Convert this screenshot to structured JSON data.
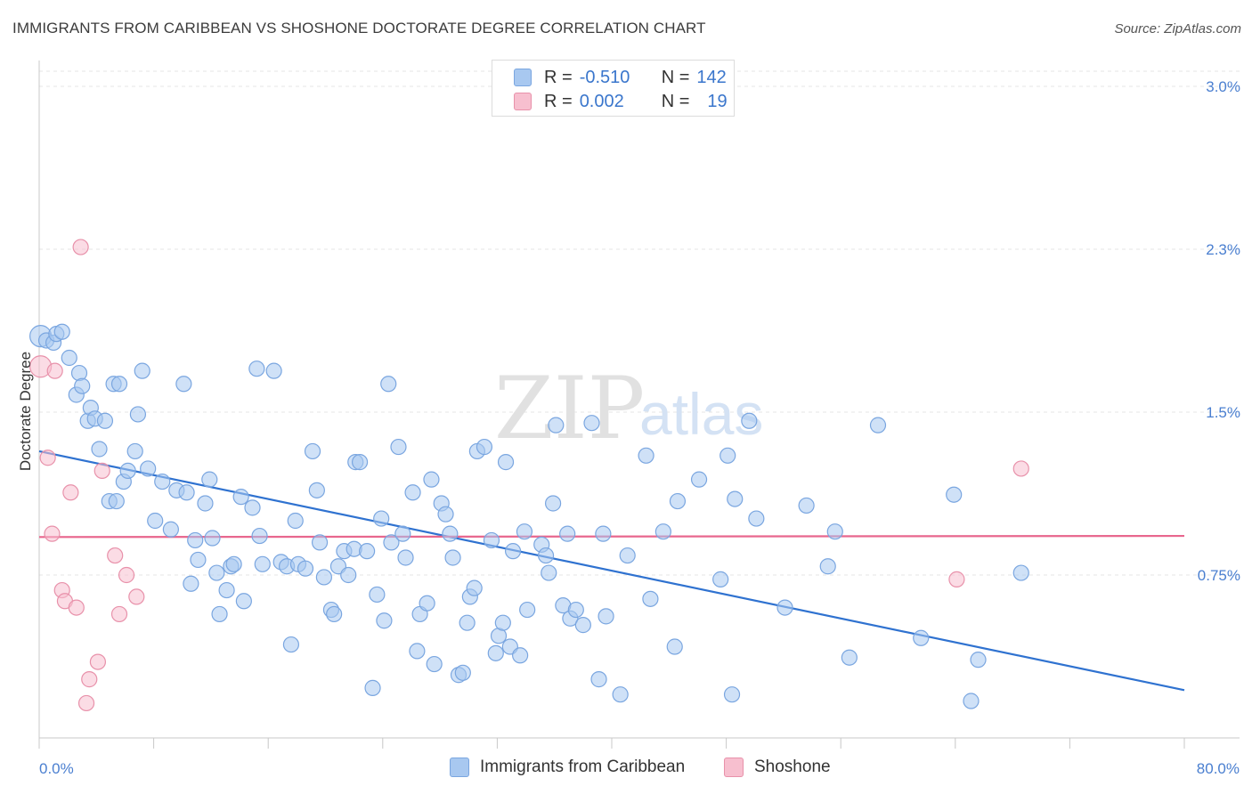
{
  "title": "IMMIGRANTS FROM CARIBBEAN VS SHOSHONE DOCTORATE DEGREE CORRELATION CHART",
  "source": "Source: ZipAtlas.com",
  "watermark": {
    "zip": "ZIP",
    "atlas": "atlas"
  },
  "legend_top": [
    {
      "r_label": "R =",
      "r_value": "-0.510",
      "n_label": "N =",
      "n_value": "142",
      "color": "#a8c8f0",
      "border": "#7aa6e0"
    },
    {
      "r_label": "R =",
      "r_value": "0.002",
      "n_label": "N =",
      "n_value": "19",
      "color": "#f7bfcf",
      "border": "#e891aa"
    }
  ],
  "legend_bottom": [
    {
      "label": "Immigrants from Caribbean",
      "color": "#a8c8f0"
    },
    {
      "label": "Shoshone",
      "color": "#f7bfcf"
    }
  ],
  "chart_data": {
    "type": "scatter",
    "title": "IMMIGRANTS FROM CARIBBEAN VS SHOSHONE DOCTORATE DEGREE CORRELATION CHART",
    "xlabel": "",
    "ylabel": "Doctorate Degree",
    "x_tick_labels": [
      "0.0%",
      "80.0%"
    ],
    "y_tick_labels": [
      "0.75%",
      "1.5%",
      "2.3%",
      "3.0%"
    ],
    "y_ticks": [
      0.75,
      1.5,
      2.25,
      3.0
    ],
    "xlim": [
      0,
      80
    ],
    "ylim": [
      0,
      3.1
    ],
    "grid": true,
    "legend_position": "top-center",
    "series": [
      {
        "name": "Immigrants from Caribbean",
        "color": "#7aa6e0",
        "fill": "#a8c8f0",
        "trend": {
          "x0": 0,
          "y0": 1.32,
          "x1": 80,
          "y1": 0.22,
          "color": "#2f72d0"
        },
        "points": [
          [
            0.1,
            1.85
          ],
          [
            0.5,
            1.83
          ],
          [
            1.0,
            1.82
          ],
          [
            1.2,
            1.86
          ],
          [
            1.6,
            1.87
          ],
          [
            2.1,
            1.75
          ],
          [
            2.6,
            1.58
          ],
          [
            2.8,
            1.68
          ],
          [
            3.0,
            1.62
          ],
          [
            3.4,
            1.46
          ],
          [
            3.6,
            1.52
          ],
          [
            3.9,
            1.47
          ],
          [
            4.2,
            1.33
          ],
          [
            4.6,
            1.46
          ],
          [
            4.9,
            1.09
          ],
          [
            5.2,
            1.63
          ],
          [
            5.4,
            1.09
          ],
          [
            5.6,
            1.63
          ],
          [
            5.9,
            1.18
          ],
          [
            6.2,
            1.23
          ],
          [
            6.7,
            1.32
          ],
          [
            6.9,
            1.49
          ],
          [
            7.2,
            1.69
          ],
          [
            7.6,
            1.24
          ],
          [
            8.1,
            1.0
          ],
          [
            8.6,
            1.18
          ],
          [
            9.2,
            0.96
          ],
          [
            9.6,
            1.14
          ],
          [
            10.1,
            1.63
          ],
          [
            10.3,
            1.13
          ],
          [
            10.6,
            0.71
          ],
          [
            10.9,
            0.91
          ],
          [
            11.1,
            0.82
          ],
          [
            11.6,
            1.08
          ],
          [
            11.9,
            1.19
          ],
          [
            12.1,
            0.92
          ],
          [
            12.4,
            0.76
          ],
          [
            12.6,
            0.57
          ],
          [
            13.1,
            0.68
          ],
          [
            13.4,
            0.79
          ],
          [
            13.6,
            0.8
          ],
          [
            14.1,
            1.11
          ],
          [
            14.3,
            0.63
          ],
          [
            14.9,
            1.06
          ],
          [
            15.2,
            1.7
          ],
          [
            15.4,
            0.93
          ],
          [
            15.6,
            0.8
          ],
          [
            16.4,
            1.69
          ],
          [
            16.9,
            0.81
          ],
          [
            17.3,
            0.79
          ],
          [
            17.6,
            0.43
          ],
          [
            17.9,
            1.0
          ],
          [
            18.1,
            0.8
          ],
          [
            18.6,
            0.78
          ],
          [
            19.1,
            1.32
          ],
          [
            19.4,
            1.14
          ],
          [
            19.6,
            0.9
          ],
          [
            19.9,
            0.74
          ],
          [
            20.4,
            0.59
          ],
          [
            20.6,
            0.57
          ],
          [
            20.9,
            0.79
          ],
          [
            21.3,
            0.86
          ],
          [
            21.6,
            0.75
          ],
          [
            22.0,
            0.87
          ],
          [
            22.1,
            1.27
          ],
          [
            22.4,
            1.27
          ],
          [
            22.9,
            0.86
          ],
          [
            23.3,
            0.23
          ],
          [
            23.6,
            0.66
          ],
          [
            23.9,
            1.01
          ],
          [
            24.1,
            0.54
          ],
          [
            24.4,
            1.63
          ],
          [
            24.6,
            0.9
          ],
          [
            25.1,
            1.34
          ],
          [
            25.4,
            0.94
          ],
          [
            25.6,
            0.83
          ],
          [
            26.1,
            1.13
          ],
          [
            26.4,
            0.4
          ],
          [
            26.6,
            0.57
          ],
          [
            27.1,
            0.62
          ],
          [
            27.4,
            1.19
          ],
          [
            27.6,
            0.34
          ],
          [
            28.1,
            1.08
          ],
          [
            28.4,
            1.03
          ],
          [
            28.7,
            0.94
          ],
          [
            28.9,
            0.83
          ],
          [
            29.3,
            0.29
          ],
          [
            29.6,
            0.3
          ],
          [
            29.9,
            0.53
          ],
          [
            30.1,
            0.65
          ],
          [
            30.4,
            0.69
          ],
          [
            30.6,
            1.32
          ],
          [
            31.1,
            1.34
          ],
          [
            31.6,
            0.91
          ],
          [
            31.9,
            0.39
          ],
          [
            32.1,
            0.47
          ],
          [
            32.4,
            0.53
          ],
          [
            32.6,
            1.27
          ],
          [
            32.9,
            0.42
          ],
          [
            33.1,
            0.86
          ],
          [
            33.6,
            0.38
          ],
          [
            33.9,
            0.95
          ],
          [
            34.1,
            0.59
          ],
          [
            35.1,
            0.89
          ],
          [
            35.4,
            0.84
          ],
          [
            35.6,
            0.76
          ],
          [
            35.9,
            1.08
          ],
          [
            36.1,
            1.44
          ],
          [
            36.6,
            0.61
          ],
          [
            36.9,
            0.94
          ],
          [
            37.1,
            0.55
          ],
          [
            37.5,
            0.59
          ],
          [
            38.0,
            0.52
          ],
          [
            38.6,
            1.45
          ],
          [
            39.1,
            0.27
          ],
          [
            39.4,
            0.94
          ],
          [
            39.6,
            0.56
          ],
          [
            40.6,
            0.2
          ],
          [
            41.1,
            0.84
          ],
          [
            42.4,
            1.3
          ],
          [
            42.7,
            0.64
          ],
          [
            43.6,
            0.95
          ],
          [
            44.4,
            0.42
          ],
          [
            44.6,
            1.09
          ],
          [
            46.1,
            1.19
          ],
          [
            47.6,
            0.73
          ],
          [
            48.1,
            1.3
          ],
          [
            48.4,
            0.2
          ],
          [
            48.6,
            1.1
          ],
          [
            49.6,
            1.46
          ],
          [
            50.1,
            1.01
          ],
          [
            52.1,
            0.6
          ],
          [
            53.6,
            1.07
          ],
          [
            55.1,
            0.79
          ],
          [
            55.6,
            0.95
          ],
          [
            56.6,
            0.37
          ],
          [
            58.6,
            1.44
          ],
          [
            61.6,
            0.46
          ],
          [
            65.6,
            0.36
          ],
          [
            65.1,
            0.17
          ],
          [
            68.6,
            0.76
          ],
          [
            63.9,
            1.12
          ]
        ]
      },
      {
        "name": "Shoshone",
        "color": "#e891aa",
        "fill": "#f7bfcf",
        "trend": {
          "x0": 0,
          "y0": 0.925,
          "x1": 80,
          "y1": 0.93,
          "color": "#e8678e"
        },
        "points": [
          [
            0.1,
            1.71
          ],
          [
            0.6,
            1.29
          ],
          [
            0.9,
            0.94
          ],
          [
            1.1,
            1.69
          ],
          [
            1.6,
            0.68
          ],
          [
            1.8,
            0.63
          ],
          [
            2.2,
            1.13
          ],
          [
            2.6,
            0.6
          ],
          [
            2.9,
            2.26
          ],
          [
            3.3,
            0.16
          ],
          [
            3.5,
            0.27
          ],
          [
            4.1,
            0.35
          ],
          [
            4.4,
            1.23
          ],
          [
            5.3,
            0.84
          ],
          [
            5.6,
            0.57
          ],
          [
            6.1,
            0.75
          ],
          [
            6.8,
            0.65
          ],
          [
            64.1,
            0.73
          ],
          [
            68.6,
            1.24
          ]
        ]
      }
    ]
  }
}
